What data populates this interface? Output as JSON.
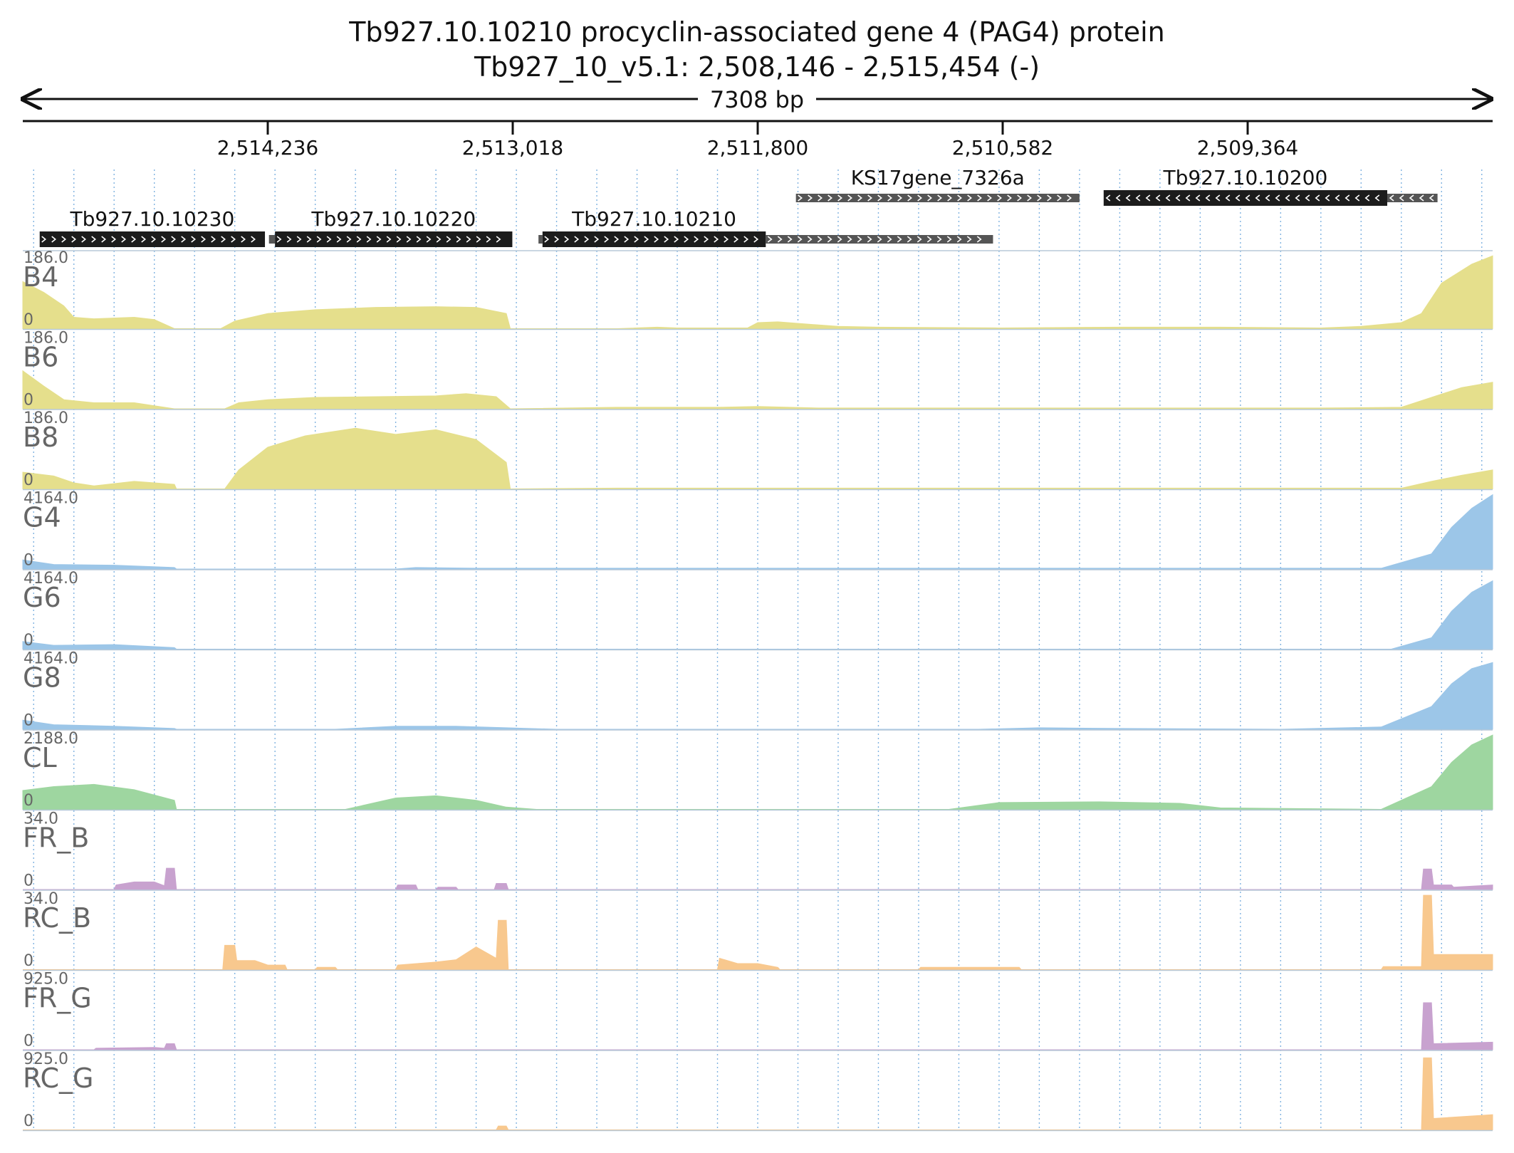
{
  "header": {
    "title_line1": "Tb927.10.10210  procyclin-associated gene 4 (PAG4) protein",
    "title_line2": "Tb927_10_v5.1: 2,508,146 - 2,515,454 (-)",
    "span_label": "7308 bp"
  },
  "coordinates": {
    "region_left": 2515454,
    "region_right": 2508146,
    "ticks": [
      {
        "pos": 2514236,
        "label": "2,514,236"
      },
      {
        "pos": 2513018,
        "label": "2,513,018"
      },
      {
        "pos": 2511800,
        "label": "2,511,800"
      },
      {
        "pos": 2510582,
        "label": "2,510,582"
      },
      {
        "pos": 2509364,
        "label": "2,509,364"
      }
    ]
  },
  "genes": [
    {
      "name": "Tb927.10.10230",
      "row": 1,
      "strand": "+",
      "parts": [
        {
          "from": 2515370,
          "to": 2514250,
          "style": "cds"
        }
      ]
    },
    {
      "name": "Tb927.10.10220",
      "row": 1,
      "strand": "+",
      "parts": [
        {
          "from": 2514230,
          "to": 2514200,
          "style": "utr"
        },
        {
          "from": 2514200,
          "to": 2513020,
          "style": "cds"
        }
      ]
    },
    {
      "name": "Tb927.10.10210",
      "row": 1,
      "strand": "+",
      "parts": [
        {
          "from": 2512890,
          "to": 2512870,
          "style": "utr"
        },
        {
          "from": 2512870,
          "to": 2511760,
          "style": "cds"
        },
        {
          "from": 2511760,
          "to": 2510630,
          "style": "utr"
        }
      ]
    },
    {
      "name": "KS17gene_7326a",
      "row": 0,
      "strand": "+",
      "parts": [
        {
          "from": 2511610,
          "to": 2510200,
          "style": "utr"
        }
      ]
    },
    {
      "name": "Tb927.10.10200",
      "row": 0,
      "strand": "-",
      "parts": [
        {
          "from": 2510080,
          "to": 2508670,
          "style": "cds"
        },
        {
          "from": 2508670,
          "to": 2508420,
          "style": "utr"
        }
      ]
    }
  ],
  "tracks": [
    {
      "name": "B4",
      "max_label": "186.0",
      "min_label": "0",
      "color": "#e5df8c",
      "profile": [
        [
          2515454,
          0.62
        ],
        [
          2515350,
          0.48
        ],
        [
          2515250,
          0.3
        ],
        [
          2515200,
          0.15
        ],
        [
          2515100,
          0.13
        ],
        [
          2514900,
          0.15
        ],
        [
          2514800,
          0.12
        ],
        [
          2514700,
          0.0
        ],
        [
          2514470,
          0.0
        ],
        [
          2514400,
          0.1
        ],
        [
          2514236,
          0.2
        ],
        [
          2514000,
          0.25
        ],
        [
          2513700,
          0.28
        ],
        [
          2513400,
          0.29
        ],
        [
          2513200,
          0.28
        ],
        [
          2513050,
          0.2
        ],
        [
          2513030,
          0.0
        ],
        [
          2512500,
          0.0
        ],
        [
          2512300,
          0.02
        ],
        [
          2512200,
          0.01
        ],
        [
          2511850,
          0.01
        ],
        [
          2511800,
          0.08
        ],
        [
          2511700,
          0.09
        ],
        [
          2511400,
          0.03
        ],
        [
          2511200,
          0.02
        ],
        [
          2510600,
          0.01
        ],
        [
          2510000,
          0.02
        ],
        [
          2509500,
          0.02
        ],
        [
          2509000,
          0.01
        ],
        [
          2508800,
          0.03
        ],
        [
          2508600,
          0.08
        ],
        [
          2508500,
          0.2
        ],
        [
          2508400,
          0.6
        ],
        [
          2508250,
          0.85
        ],
        [
          2508146,
          0.96
        ]
      ]
    },
    {
      "name": "B6",
      "max_label": "186.0",
      "min_label": "0",
      "color": "#e5df8c",
      "profile": [
        [
          2515454,
          0.5
        ],
        [
          2515350,
          0.3
        ],
        [
          2515250,
          0.12
        ],
        [
          2515100,
          0.08
        ],
        [
          2514900,
          0.08
        ],
        [
          2514700,
          0.0
        ],
        [
          2514450,
          0.0
        ],
        [
          2514380,
          0.08
        ],
        [
          2514236,
          0.12
        ],
        [
          2514000,
          0.15
        ],
        [
          2513700,
          0.16
        ],
        [
          2513400,
          0.17
        ],
        [
          2513250,
          0.2
        ],
        [
          2513100,
          0.16
        ],
        [
          2513030,
          0.0
        ],
        [
          2512500,
          0.02
        ],
        [
          2512000,
          0.02
        ],
        [
          2511800,
          0.03
        ],
        [
          2511500,
          0.01
        ],
        [
          2509000,
          0.01
        ],
        [
          2508600,
          0.02
        ],
        [
          2508450,
          0.15
        ],
        [
          2508300,
          0.28
        ],
        [
          2508146,
          0.35
        ]
      ]
    },
    {
      "name": "B8",
      "max_label": "186.0",
      "min_label": "0",
      "color": "#e5df8c",
      "profile": [
        [
          2515454,
          0.22
        ],
        [
          2515300,
          0.17
        ],
        [
          2515200,
          0.08
        ],
        [
          2515100,
          0.04
        ],
        [
          2514900,
          0.1
        ],
        [
          2514700,
          0.06
        ],
        [
          2514690,
          0.0
        ],
        [
          2514450,
          0.0
        ],
        [
          2514380,
          0.25
        ],
        [
          2514236,
          0.55
        ],
        [
          2514050,
          0.7
        ],
        [
          2513800,
          0.8
        ],
        [
          2513600,
          0.72
        ],
        [
          2513400,
          0.78
        ],
        [
          2513200,
          0.65
        ],
        [
          2513050,
          0.35
        ],
        [
          2513030,
          0.0
        ],
        [
          2512500,
          0.01
        ],
        [
          2508600,
          0.01
        ],
        [
          2508450,
          0.1
        ],
        [
          2508300,
          0.18
        ],
        [
          2508146,
          0.25
        ]
      ]
    },
    {
      "name": "G4",
      "max_label": "4164.0",
      "min_label": "0",
      "color": "#9cc6e8",
      "profile": [
        [
          2515454,
          0.12
        ],
        [
          2515300,
          0.06
        ],
        [
          2515000,
          0.05
        ],
        [
          2514700,
          0.02
        ],
        [
          2514690,
          0.0
        ],
        [
          2513600,
          0.0
        ],
        [
          2513500,
          0.02
        ],
        [
          2513200,
          0.01
        ],
        [
          2508700,
          0.01
        ],
        [
          2508450,
          0.2
        ],
        [
          2508350,
          0.55
        ],
        [
          2508250,
          0.8
        ],
        [
          2508146,
          0.98
        ]
      ]
    },
    {
      "name": "G6",
      "max_label": "4164.0",
      "min_label": "0",
      "color": "#9cc6e8",
      "profile": [
        [
          2515454,
          0.1
        ],
        [
          2515300,
          0.05
        ],
        [
          2515000,
          0.06
        ],
        [
          2514700,
          0.02
        ],
        [
          2514690,
          0.0
        ],
        [
          2508650,
          0.0
        ],
        [
          2508450,
          0.15
        ],
        [
          2508350,
          0.5
        ],
        [
          2508250,
          0.75
        ],
        [
          2508146,
          0.9
        ]
      ]
    },
    {
      "name": "G8",
      "max_label": "4164.0",
      "min_label": "0",
      "color": "#9cc6e8",
      "profile": [
        [
          2515454,
          0.12
        ],
        [
          2515300,
          0.06
        ],
        [
          2515000,
          0.04
        ],
        [
          2514700,
          0.01
        ],
        [
          2514690,
          0.0
        ],
        [
          2513900,
          0.0
        ],
        [
          2513600,
          0.04
        ],
        [
          2513300,
          0.04
        ],
        [
          2513050,
          0.02
        ],
        [
          2512800,
          0.0
        ],
        [
          2510700,
          0.0
        ],
        [
          2510400,
          0.02
        ],
        [
          2510000,
          0.01
        ],
        [
          2509200,
          0.0
        ],
        [
          2508700,
          0.03
        ],
        [
          2508450,
          0.3
        ],
        [
          2508350,
          0.6
        ],
        [
          2508250,
          0.8
        ],
        [
          2508146,
          0.88
        ]
      ]
    },
    {
      "name": "CL",
      "max_label": "2188.0",
      "min_label": "0",
      "color": "#9ed6a0",
      "profile": [
        [
          2515454,
          0.25
        ],
        [
          2515300,
          0.3
        ],
        [
          2515100,
          0.33
        ],
        [
          2514900,
          0.26
        ],
        [
          2514700,
          0.12
        ],
        [
          2514690,
          0.0
        ],
        [
          2513850,
          0.0
        ],
        [
          2513600,
          0.15
        ],
        [
          2513400,
          0.18
        ],
        [
          2513200,
          0.12
        ],
        [
          2513050,
          0.03
        ],
        [
          2512900,
          0.0
        ],
        [
          2510850,
          0.0
        ],
        [
          2510600,
          0.09
        ],
        [
          2510100,
          0.1
        ],
        [
          2509700,
          0.08
        ],
        [
          2509500,
          0.02
        ],
        [
          2508700,
          0.0
        ],
        [
          2508450,
          0.3
        ],
        [
          2508350,
          0.62
        ],
        [
          2508250,
          0.85
        ],
        [
          2508146,
          0.98
        ]
      ]
    },
    {
      "name": "FR_B",
      "max_label": "34.0",
      "min_label": "0",
      "color": "#c8a2cf",
      "profile": [
        [
          2515454,
          0.0
        ],
        [
          2515000,
          0.0
        ],
        [
          2514990,
          0.06
        ],
        [
          2514900,
          0.1
        ],
        [
          2514800,
          0.1
        ],
        [
          2514750,
          0.05
        ],
        [
          2514740,
          0.28
        ],
        [
          2514700,
          0.28
        ],
        [
          2514690,
          0.0
        ],
        [
          2513600,
          0.0
        ],
        [
          2513590,
          0.06
        ],
        [
          2513500,
          0.06
        ],
        [
          2513490,
          0.0
        ],
        [
          2513400,
          0.0
        ],
        [
          2513390,
          0.03
        ],
        [
          2513300,
          0.03
        ],
        [
          2513290,
          0.0
        ],
        [
          2513110,
          0.0
        ],
        [
          2513100,
          0.08
        ],
        [
          2513050,
          0.08
        ],
        [
          2513040,
          0.0
        ],
        [
          2508500,
          0.0
        ],
        [
          2508490,
          0.27
        ],
        [
          2508450,
          0.27
        ],
        [
          2508440,
          0.06
        ],
        [
          2508350,
          0.06
        ],
        [
          2508340,
          0.03
        ],
        [
          2508146,
          0.06
        ]
      ]
    },
    {
      "name": "RC_B",
      "max_label": "34.0",
      "min_label": "0",
      "color": "#f8c88e",
      "profile": [
        [
          2515454,
          0.0
        ],
        [
          2514460,
          0.0
        ],
        [
          2514450,
          0.32
        ],
        [
          2514400,
          0.32
        ],
        [
          2514390,
          0.12
        ],
        [
          2514300,
          0.12
        ],
        [
          2514236,
          0.06
        ],
        [
          2514150,
          0.06
        ],
        [
          2514140,
          0.0
        ],
        [
          2514000,
          0.0
        ],
        [
          2513990,
          0.03
        ],
        [
          2513900,
          0.03
        ],
        [
          2513890,
          0.0
        ],
        [
          2513600,
          0.0
        ],
        [
          2513590,
          0.06
        ],
        [
          2513400,
          0.1
        ],
        [
          2513300,
          0.13
        ],
        [
          2513200,
          0.3
        ],
        [
          2513100,
          0.15
        ],
        [
          2513090,
          0.65
        ],
        [
          2513050,
          0.65
        ],
        [
          2513040,
          0.0
        ],
        [
          2512000,
          0.0
        ],
        [
          2511990,
          0.15
        ],
        [
          2511900,
          0.08
        ],
        [
          2511800,
          0.08
        ],
        [
          2511700,
          0.03
        ],
        [
          2511690,
          0.0
        ],
        [
          2511000,
          0.0
        ],
        [
          2510990,
          0.03
        ],
        [
          2510500,
          0.03
        ],
        [
          2510490,
          0.0
        ],
        [
          2508700,
          0.0
        ],
        [
          2508690,
          0.04
        ],
        [
          2508500,
          0.04
        ],
        [
          2508490,
          0.98
        ],
        [
          2508450,
          0.98
        ],
        [
          2508440,
          0.2
        ],
        [
          2508146,
          0.2
        ]
      ]
    },
    {
      "name": "FR_G",
      "max_label": "925.0",
      "min_label": "0",
      "color": "#c8a2cf",
      "profile": [
        [
          2515454,
          0.0
        ],
        [
          2515100,
          0.0
        ],
        [
          2515090,
          0.02
        ],
        [
          2514800,
          0.03
        ],
        [
          2514750,
          0.02
        ],
        [
          2514740,
          0.08
        ],
        [
          2514700,
          0.08
        ],
        [
          2514690,
          0.0
        ],
        [
          2508500,
          0.0
        ],
        [
          2508490,
          0.62
        ],
        [
          2508450,
          0.62
        ],
        [
          2508440,
          0.08
        ],
        [
          2508146,
          0.1
        ]
      ]
    },
    {
      "name": "RC_G",
      "max_label": "925.0",
      "min_label": "0",
      "color": "#f8c88e",
      "profile": [
        [
          2515454,
          0.0
        ],
        [
          2513100,
          0.0
        ],
        [
          2513090,
          0.05
        ],
        [
          2513050,
          0.05
        ],
        [
          2513040,
          0.0
        ],
        [
          2508500,
          0.0
        ],
        [
          2508490,
          0.95
        ],
        [
          2508450,
          0.95
        ],
        [
          2508440,
          0.15
        ],
        [
          2508146,
          0.2
        ]
      ]
    }
  ]
}
